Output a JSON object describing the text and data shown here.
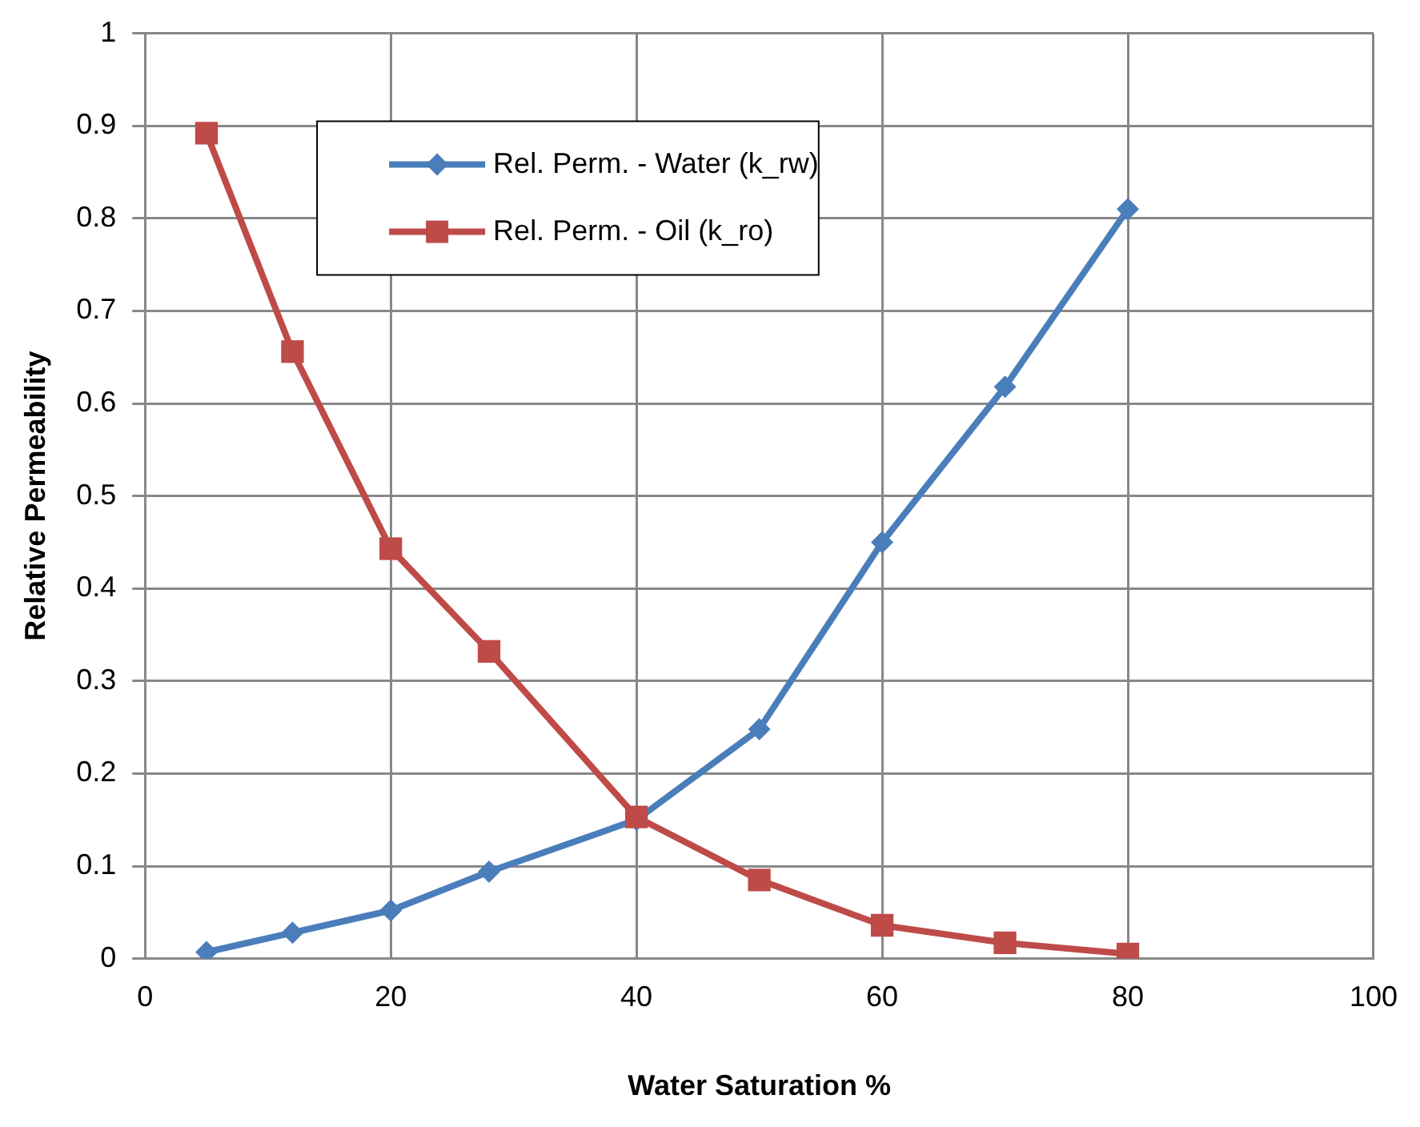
{
  "chart_data": {
    "type": "line",
    "xlabel": "Water Saturation %",
    "ylabel": "Relative Permeability",
    "x": [
      5,
      12,
      20,
      28,
      40,
      50,
      60,
      70,
      80
    ],
    "series": [
      {
        "name": "Rel. Perm. - Water (k_rw)",
        "color": "#4a7ebb",
        "marker": "diamond",
        "values": [
          0.007,
          0.028,
          0.052,
          0.094,
          0.15,
          0.248,
          0.45,
          0.618,
          0.81
        ]
      },
      {
        "name": "Rel. Perm. - Oil (k_ro)",
        "color": "#be4b48",
        "marker": "square",
        "values": [
          0.892,
          0.656,
          0.443,
          0.332,
          0.153,
          0.085,
          0.036,
          0.017,
          0.005
        ]
      }
    ],
    "xlim": [
      0,
      100
    ],
    "xticks": [
      0,
      20,
      40,
      60,
      80,
      100
    ],
    "ylim": [
      0,
      1
    ],
    "yticks": [
      0,
      0.1,
      0.2,
      0.3,
      0.4,
      0.5,
      0.6,
      0.7,
      0.8,
      0.9,
      1
    ],
    "grid": true,
    "legend": "top",
    "line_style": "solid"
  }
}
